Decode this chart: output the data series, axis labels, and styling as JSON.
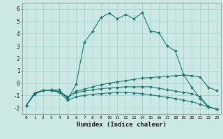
{
  "xlabel": "Humidex (Indice chaleur)",
  "xlim": [
    -0.5,
    23.5
  ],
  "ylim": [
    -2.5,
    6.5
  ],
  "xticks": [
    0,
    1,
    2,
    3,
    4,
    5,
    6,
    7,
    8,
    9,
    10,
    11,
    12,
    13,
    14,
    15,
    16,
    17,
    18,
    19,
    20,
    21,
    22,
    23
  ],
  "yticks": [
    -2,
    -1,
    0,
    1,
    2,
    3,
    4,
    5,
    6
  ],
  "bg_color": "#cce8e5",
  "line_color": "#1a7a6e",
  "grid_color": "#a8d4d0",
  "lines": [
    {
      "x": [
        0,
        1,
        2,
        3,
        4,
        5,
        6,
        7,
        8,
        9,
        10,
        11,
        12,
        13,
        14,
        15,
        16,
        17,
        18,
        19,
        20,
        21,
        22,
        23
      ],
      "y": [
        -1.8,
        -0.9,
        -0.6,
        -0.55,
        -0.55,
        -1.3,
        -0.1,
        3.3,
        4.2,
        5.3,
        5.65,
        5.2,
        5.55,
        5.2,
        5.7,
        4.2,
        4.1,
        3.0,
        2.6,
        0.7,
        -0.35,
        -1.25,
        -1.95,
        -2.1
      ]
    },
    {
      "x": [
        0,
        1,
        2,
        3,
        4,
        5,
        6,
        7,
        8,
        9,
        10,
        11,
        12,
        13,
        14,
        15,
        16,
        17,
        18,
        19,
        20,
        21,
        22,
        23
      ],
      "y": [
        -1.8,
        -0.8,
        -0.6,
        -0.55,
        -0.7,
        -1.2,
        -0.65,
        -0.5,
        -0.3,
        -0.15,
        0.0,
        0.1,
        0.2,
        0.3,
        0.4,
        0.45,
        0.5,
        0.55,
        0.6,
        0.65,
        0.6,
        0.5,
        -0.35,
        -0.6
      ]
    },
    {
      "x": [
        0,
        1,
        2,
        3,
        4,
        5,
        6,
        7,
        8,
        9,
        10,
        11,
        12,
        13,
        14,
        15,
        16,
        17,
        18,
        19,
        20,
        21,
        22,
        23
      ],
      "y": [
        -1.8,
        -0.8,
        -0.6,
        -0.6,
        -0.7,
        -1.1,
        -0.75,
        -0.65,
        -0.55,
        -0.45,
        -0.4,
        -0.35,
        -0.3,
        -0.3,
        -0.3,
        -0.3,
        -0.4,
        -0.55,
        -0.65,
        -0.75,
        -0.85,
        -1.1,
        -1.9,
        -2.1
      ]
    },
    {
      "x": [
        0,
        1,
        2,
        3,
        4,
        5,
        6,
        7,
        8,
        9,
        10,
        11,
        12,
        13,
        14,
        15,
        16,
        17,
        18,
        19,
        20,
        21,
        22,
        23
      ],
      "y": [
        -1.8,
        -0.8,
        -0.6,
        -0.6,
        -0.75,
        -1.4,
        -1.1,
        -1.0,
        -0.9,
        -0.85,
        -0.8,
        -0.75,
        -0.75,
        -0.8,
        -0.85,
        -0.95,
        -1.05,
        -1.15,
        -1.25,
        -1.4,
        -1.5,
        -1.7,
        -1.95,
        -2.1
      ]
    }
  ]
}
